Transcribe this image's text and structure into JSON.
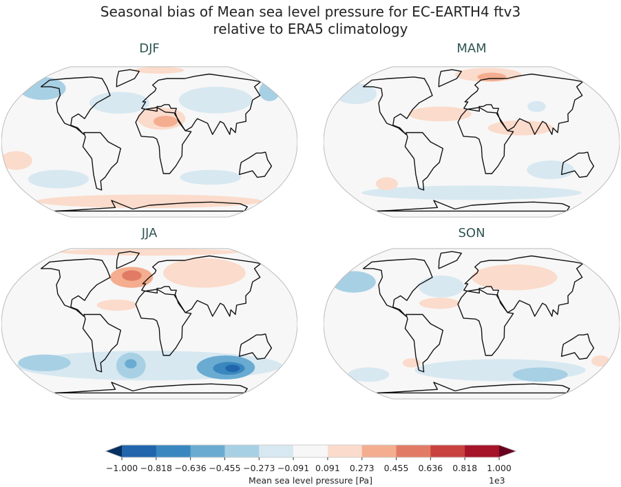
{
  "title": [
    "Seasonal bias of Mean sea level pressure for EC-EARTH4 ftv3",
    "relative to ERA5 climatology"
  ],
  "panels": [
    {
      "label": "DJF",
      "anomalies": [
        {
          "lon": -160,
          "lat": 58,
          "rlon": 35,
          "rlat": 14,
          "value": -300
        },
        {
          "lon": 175,
          "lat": 55,
          "rlon": 15,
          "rlat": 12,
          "value": -300
        },
        {
          "lon": -40,
          "lat": 42,
          "rlon": 40,
          "rlat": 12,
          "value": -150
        },
        {
          "lon": 90,
          "lat": 45,
          "rlon": 50,
          "rlat": 15,
          "value": -150
        },
        {
          "lon": 15,
          "lat": 25,
          "rlon": 30,
          "rlat": 12,
          "value": 200
        },
        {
          "lon": 20,
          "lat": 22,
          "rlon": 15,
          "rlat": 6,
          "value": 320
        },
        {
          "lon": 20,
          "lat": 82,
          "rlon": 50,
          "rlat": 8,
          "value": 200
        },
        {
          "lon": -120,
          "lat": -40,
          "rlon": 40,
          "rlat": 10,
          "value": -150
        },
        {
          "lon": 80,
          "lat": -38,
          "rlon": 40,
          "rlat": 8,
          "value": -200
        },
        {
          "lon": -165,
          "lat": -20,
          "rlon": 20,
          "rlat": 10,
          "value": 150
        },
        {
          "lon": 0,
          "lat": -65,
          "rlon": 180,
          "rlat": 8,
          "value": 150
        }
      ]
    },
    {
      "label": "MAM",
      "anomalies": [
        {
          "lon": -165,
          "lat": 52,
          "rlon": 30,
          "rlat": 12,
          "value": -250
        },
        {
          "lon": 30,
          "lat": 75,
          "rlon": 60,
          "rlat": 12,
          "value": 250
        },
        {
          "lon": 35,
          "lat": 72,
          "rlon": 25,
          "rlat": 6,
          "value": 380
        },
        {
          "lon": -40,
          "lat": 30,
          "rlon": 40,
          "rlat": 8,
          "value": 150
        },
        {
          "lon": 60,
          "lat": 15,
          "rlon": 40,
          "rlat": 8,
          "value": 150
        },
        {
          "lon": 85,
          "lat": 38,
          "rlon": 12,
          "rlat": 6,
          "value": -250
        },
        {
          "lon": 0,
          "lat": -55,
          "rlon": 160,
          "rlat": 8,
          "value": -150
        },
        {
          "lon": -115,
          "lat": -45,
          "rlon": 15,
          "rlat": 7,
          "value": 200
        },
        {
          "lon": 100,
          "lat": -30,
          "rlon": 30,
          "rlat": 10,
          "value": -150
        }
      ]
    },
    {
      "label": "JJA",
      "anomalies": [
        {
          "lon": 0,
          "lat": 82,
          "rlon": 180,
          "rlat": 8,
          "value": 200
        },
        {
          "lon": 80,
          "lat": 55,
          "rlon": 60,
          "rlat": 18,
          "value": 150
        },
        {
          "lon": -25,
          "lat": 50,
          "rlon": 30,
          "rlat": 12,
          "value": 300
        },
        {
          "lon": -25,
          "lat": 52,
          "rlon": 14,
          "rlat": 6,
          "value": 500
        },
        {
          "lon": -40,
          "lat": 20,
          "rlon": 25,
          "rlat": 6,
          "value": 150
        },
        {
          "lon": 0,
          "lat": -45,
          "rlon": 180,
          "rlat": 16,
          "value": -200
        },
        {
          "lon": -140,
          "lat": -42,
          "rlon": 35,
          "rlat": 9,
          "value": -400
        },
        {
          "lon": -25,
          "lat": -45,
          "rlon": 20,
          "rlat": 14,
          "value": -400
        },
        {
          "lon": -25,
          "lat": -43,
          "rlon": 8,
          "rlat": 5,
          "value": -600
        },
        {
          "lon": 105,
          "lat": -47,
          "rlon": 40,
          "rlat": 13,
          "value": -500
        },
        {
          "lon": 110,
          "lat": -48,
          "rlon": 22,
          "rlat": 7,
          "value": -700
        },
        {
          "lon": 115,
          "lat": -48,
          "rlon": 10,
          "rlat": 4,
          "value": -900
        }
      ]
    },
    {
      "label": "SON",
      "anomalies": [
        {
          "lon": -160,
          "lat": 45,
          "rlon": 30,
          "rlat": 12,
          "value": -350
        },
        {
          "lon": -40,
          "lat": 40,
          "rlon": 30,
          "rlat": 12,
          "value": -200
        },
        {
          "lon": 60,
          "lat": 50,
          "rlon": 60,
          "rlat": 15,
          "value": 150
        },
        {
          "lon": -40,
          "lat": 22,
          "rlon": 25,
          "rlat": 6,
          "value": 150
        },
        {
          "lon": 40,
          "lat": -50,
          "rlon": 120,
          "rlat": 12,
          "value": -250
        },
        {
          "lon": 100,
          "lat": -55,
          "rlon": 40,
          "rlat": 8,
          "value": -450
        },
        {
          "lon": -150,
          "lat": -55,
          "rlon": 30,
          "rlat": 8,
          "value": -250
        },
        {
          "lon": -80,
          "lat": -42,
          "rlon": 12,
          "rlat": 5,
          "value": 200
        },
        {
          "lon": 170,
          "lat": -40,
          "rlon": 12,
          "rlat": 6,
          "value": 200
        }
      ]
    }
  ],
  "colorbar": {
    "label": "Mean sea level pressure [Pa]",
    "multiplier": "1e3",
    "ticks": [
      "−1.000",
      "−0.818",
      "−0.636",
      "−0.455",
      "−0.273",
      "−0.091",
      "0.091",
      "0.273",
      "0.455",
      "0.636",
      "0.818",
      "1.000"
    ],
    "levels": [
      -1000,
      -818,
      -636,
      -455,
      -273,
      -91,
      91,
      273,
      455,
      636,
      818,
      1000
    ],
    "colors": [
      "#2166ac",
      "#3a87bf",
      "#6aabd1",
      "#a8d0e4",
      "#d7e8f1",
      "#f7f7f7",
      "#fbdbcb",
      "#f4ad8f",
      "#e17b65",
      "#c8423f",
      "#a51429"
    ],
    "under": "#053061",
    "over": "#67001f"
  }
}
